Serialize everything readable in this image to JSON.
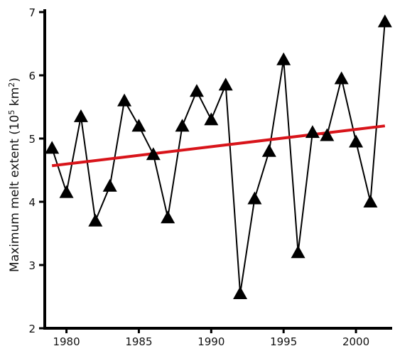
{
  "chart_data": {
    "type": "line",
    "ylabel_main": "Maximum melt extent (10",
    "ylabel_sup1": "5",
    "ylabel_mid": " km",
    "ylabel_sup2": "2",
    "ylabel_end": ")",
    "xlabel": "",
    "xlim": [
      1978.5,
      2002.5
    ],
    "ylim": [
      2,
      7
    ],
    "x_ticks": [
      1980,
      1985,
      1990,
      1995,
      2000
    ],
    "y_ticks": [
      2,
      3,
      4,
      5,
      6,
      7
    ],
    "grid": false,
    "series": [
      {
        "marker": "triangle",
        "color": "#000000",
        "x": [
          1979,
          1980,
          1981,
          1982,
          1983,
          1984,
          1985,
          1986,
          1987,
          1988,
          1989,
          1990,
          1991,
          1992,
          1993,
          1994,
          1995,
          1996,
          1997,
          1998,
          1999,
          2000,
          2001,
          2002
        ],
        "y": [
          4.85,
          4.15,
          5.35,
          3.7,
          4.25,
          5.6,
          5.2,
          4.75,
          3.75,
          5.2,
          5.75,
          5.3,
          5.85,
          2.55,
          4.05,
          4.8,
          6.25,
          3.2,
          5.1,
          5.05,
          5.95,
          4.95,
          4.0,
          6.85
        ]
      }
    ],
    "trend": {
      "color": "#d8141a",
      "x": [
        1979,
        2002
      ],
      "y": [
        4.57,
        5.2
      ]
    }
  }
}
